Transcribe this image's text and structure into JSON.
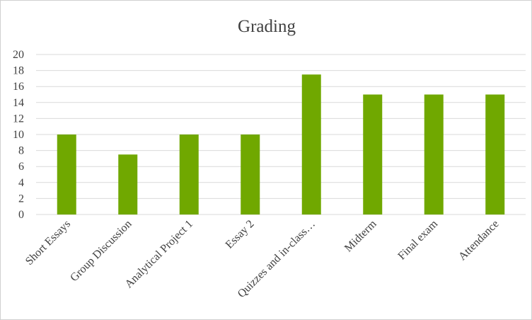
{
  "chart_data": {
    "type": "bar",
    "title": "Grading",
    "categories": [
      "Short Essays",
      "Group Discussion",
      "Analytical Project 1",
      "Essay 2",
      "Quizzes and in-class…",
      "Midterm",
      "Final exam",
      "Attendance"
    ],
    "values": [
      10,
      7.5,
      10,
      10,
      17.5,
      15,
      15,
      15
    ],
    "ylim": [
      0,
      20
    ],
    "yticks": [
      0,
      2,
      4,
      6,
      8,
      10,
      12,
      14,
      16,
      18,
      20
    ],
    "grid": true,
    "legend": "none",
    "bar_color": "#70a800"
  }
}
